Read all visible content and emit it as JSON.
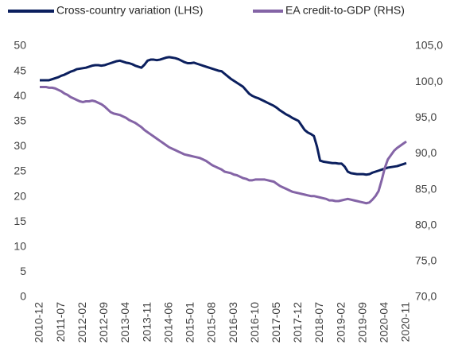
{
  "chart_data": {
    "type": "line",
    "categories": [
      "2010-12",
      null,
      null,
      null,
      null,
      null,
      null,
      "2011-07",
      null,
      null,
      null,
      null,
      null,
      null,
      "2012-02",
      null,
      null,
      null,
      null,
      null,
      null,
      "2012-09",
      null,
      null,
      null,
      null,
      null,
      null,
      "2013-04",
      null,
      null,
      null,
      null,
      null,
      null,
      "2013-11",
      null,
      null,
      null,
      null,
      null,
      null,
      "2014-06",
      null,
      null,
      null,
      null,
      null,
      null,
      "2015-01",
      null,
      null,
      null,
      null,
      null,
      null,
      "2015-08",
      null,
      null,
      null,
      null,
      null,
      null,
      "2016-03",
      null,
      null,
      null,
      null,
      null,
      null,
      "2016-10",
      null,
      null,
      null,
      null,
      null,
      null,
      "2017-05",
      null,
      null,
      null,
      null,
      null,
      null,
      "2017-12",
      null,
      null,
      null,
      null,
      null,
      null,
      "2018-07",
      null,
      null,
      null,
      null,
      null,
      null,
      "2019-02",
      null,
      null,
      null,
      null,
      null,
      null,
      "2019-09",
      null,
      null,
      null,
      null,
      null,
      null,
      "2020-04",
      null,
      null,
      null,
      null,
      null,
      null,
      "2020-11"
    ],
    "series": [
      {
        "name": "Cross-country variation (LHS)",
        "color": "#0b1f5e",
        "axis": "y",
        "values": [
          43.2,
          43.2,
          43.2,
          43.2,
          43.4,
          43.6,
          43.8,
          44.1,
          44.3,
          44.6,
          44.9,
          45.1,
          45.4,
          45.5,
          45.6,
          45.7,
          45.9,
          46.1,
          46.2,
          46.2,
          46.1,
          46.2,
          46.4,
          46.6,
          46.8,
          47.0,
          47.1,
          46.9,
          46.7,
          46.6,
          46.4,
          46.1,
          45.9,
          45.7,
          46.3,
          47.1,
          47.3,
          47.3,
          47.2,
          47.3,
          47.5,
          47.7,
          47.8,
          47.7,
          47.6,
          47.4,
          47.1,
          46.8,
          46.6,
          46.6,
          46.7,
          46.5,
          46.3,
          46.1,
          45.9,
          45.7,
          45.5,
          45.3,
          45.1,
          45.0,
          44.5,
          44.0,
          43.5,
          43.1,
          42.7,
          42.3,
          41.9,
          41.2,
          40.5,
          40.1,
          39.8,
          39.6,
          39.3,
          39.0,
          38.7,
          38.4,
          38.1,
          37.7,
          37.2,
          36.8,
          36.4,
          36.1,
          35.7,
          35.4,
          35.1,
          34.2,
          33.3,
          32.8,
          32.5,
          32.1,
          30.0,
          27.2,
          27.0,
          26.9,
          26.8,
          26.7,
          26.7,
          26.6,
          26.6,
          26.0,
          25.0,
          24.7,
          24.6,
          24.5,
          24.5,
          24.5,
          24.4,
          24.5,
          24.8,
          25.0,
          25.2,
          25.4,
          25.6,
          25.8,
          25.9,
          26.0,
          26.1,
          26.3,
          26.5,
          26.7
        ]
      },
      {
        "name": "EA credit-to-GDP (RHS)",
        "color": "#8464a6",
        "axis": "y2",
        "values": [
          99.3,
          99.3,
          99.3,
          99.2,
          99.2,
          99.1,
          98.9,
          98.7,
          98.4,
          98.2,
          97.9,
          97.7,
          97.5,
          97.3,
          97.2,
          97.3,
          97.3,
          97.4,
          97.3,
          97.1,
          96.9,
          96.6,
          96.2,
          95.8,
          95.6,
          95.5,
          95.4,
          95.2,
          95.0,
          94.7,
          94.5,
          94.3,
          94.0,
          93.7,
          93.3,
          93.0,
          92.7,
          92.4,
          92.1,
          91.8,
          91.5,
          91.2,
          90.9,
          90.7,
          90.5,
          90.3,
          90.1,
          89.9,
          89.8,
          89.7,
          89.6,
          89.5,
          89.4,
          89.2,
          89.0,
          88.7,
          88.4,
          88.2,
          88.0,
          87.8,
          87.5,
          87.4,
          87.3,
          87.1,
          87.0,
          86.8,
          86.6,
          86.5,
          86.3,
          86.3,
          86.4,
          86.4,
          86.4,
          86.4,
          86.3,
          86.2,
          86.1,
          85.8,
          85.5,
          85.3,
          85.1,
          84.9,
          84.7,
          84.6,
          84.5,
          84.4,
          84.3,
          84.2,
          84.1,
          84.1,
          84.0,
          83.9,
          83.8,
          83.7,
          83.5,
          83.5,
          83.4,
          83.4,
          83.5,
          83.6,
          83.7,
          83.6,
          83.5,
          83.4,
          83.3,
          83.2,
          83.1,
          83.2,
          83.6,
          84.1,
          84.8,
          86.3,
          88.0,
          89.2,
          89.8,
          90.4,
          90.8,
          91.1,
          91.4,
          91.7
        ]
      }
    ],
    "ylim": [
      0,
      50
    ],
    "yticks": [
      0,
      5,
      10,
      15,
      20,
      25,
      30,
      35,
      40,
      45,
      50
    ],
    "y2lim": [
      70,
      105
    ],
    "y2ticks": [
      {
        "value": 70,
        "label": "70,0"
      },
      {
        "value": 75,
        "label": "75,0"
      },
      {
        "value": 80,
        "label": "80,0"
      },
      {
        "value": 85,
        "label": "85,0"
      },
      {
        "value": 90,
        "label": "90,0"
      },
      {
        "value": 95,
        "label": "95,0"
      },
      {
        "value": 100,
        "label": "100,0"
      },
      {
        "value": 105,
        "label": "105,0"
      }
    ],
    "legend": "top",
    "grid": false
  }
}
